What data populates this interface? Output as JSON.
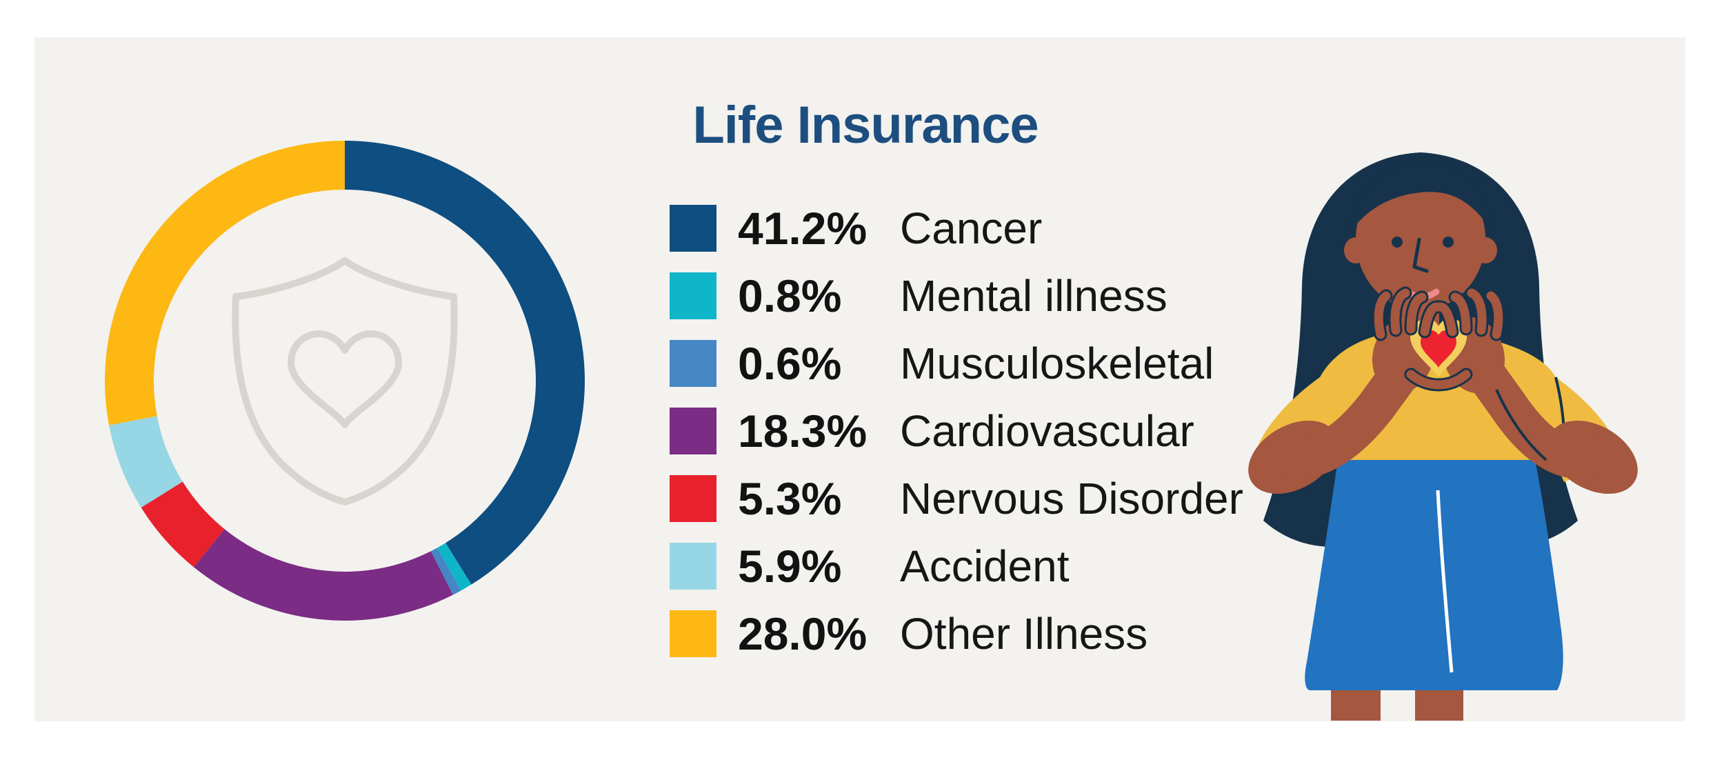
{
  "page": {
    "background": "#ffffff",
    "panel_background": "#f3f2ef"
  },
  "title": {
    "text": "Life Insurance",
    "color": "#1d4e7f"
  },
  "chart_data": {
    "type": "pie",
    "subtype": "donut",
    "title": "Life Insurance",
    "unit": "%",
    "direction": "clockwise",
    "start_angle_deg": 0,
    "categories": [
      "Cancer",
      "Mental illness",
      "Musculoskeletal",
      "Cardiovascular",
      "Nervous Disorder",
      "Accident",
      "Other Illness"
    ],
    "values": [
      41.2,
      0.8,
      0.6,
      18.3,
      5.3,
      5.9,
      28.0
    ],
    "value_labels": [
      "41.2%",
      "0.8%",
      "0.6%",
      "18.3%",
      "5.3%",
      "5.9%",
      "28.0%"
    ],
    "colors": [
      "#0e4e80",
      "#0fb6c9",
      "#4586c4",
      "#7b2c84",
      "#e8212c",
      "#97d6e5",
      "#fdb814"
    ],
    "legend_position": "right-of-donut",
    "center_watermark": "shield-heart-icon",
    "watermark_color": "#d8d5d0"
  },
  "illustration": {
    "name": "woman-making-heart-hands",
    "colors": {
      "hair": "#16334b",
      "skin": "#a5573f",
      "shirt": "#efbc41",
      "skirt": "#2273c0",
      "heart": "#ed2430",
      "heart_glow": "#f3cf5e",
      "smile": "#ee8a87",
      "line": "#16334b",
      "slit": "#ffffff"
    }
  }
}
